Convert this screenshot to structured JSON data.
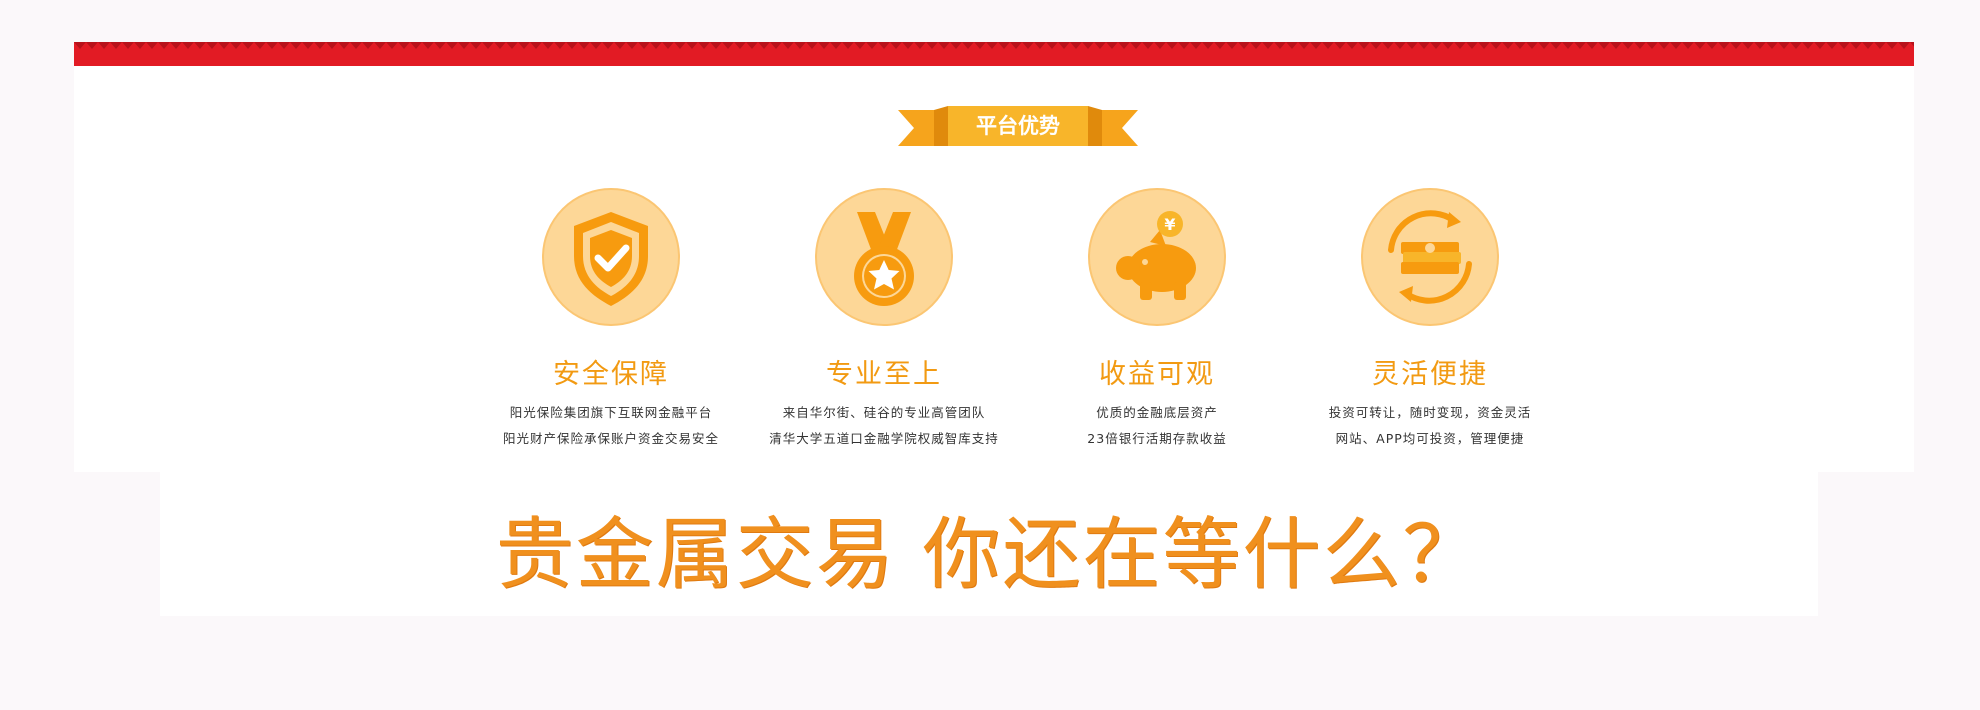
{
  "banner": {
    "title": "平台优势"
  },
  "features": [
    {
      "icon": "shield-check-icon",
      "title": "安全保障",
      "line1": "阳光保险集团旗下互联网金融平台",
      "line2": "阳光财产保险承保账户资金交易安全"
    },
    {
      "icon": "medal-star-icon",
      "title": "专业至上",
      "line1": "来自华尔街、硅谷的专业高管团队",
      "line2": "清华大学五道口金融学院权威智库支持"
    },
    {
      "icon": "piggy-bank-yen-icon",
      "title": "收益可观",
      "line1": "优质的金融底层资产",
      "line2": "23倍银行活期存款收益"
    },
    {
      "icon": "cash-cycle-icon",
      "title": "灵活便捷",
      "line1": "投资可转让，随时变现，资金灵活",
      "line2": "网站、APP均可投资，管理便捷"
    }
  ],
  "slogan": "贵金属交易  你还在等什么？",
  "colors": {
    "band_red": "#e21b24",
    "ribbon_orange": "#f8b52a",
    "icon_orange": "#f79b0f",
    "circle_fill": "#fdd797",
    "title_orange": "#f29a12",
    "slogan_orange": "#f0901e"
  }
}
